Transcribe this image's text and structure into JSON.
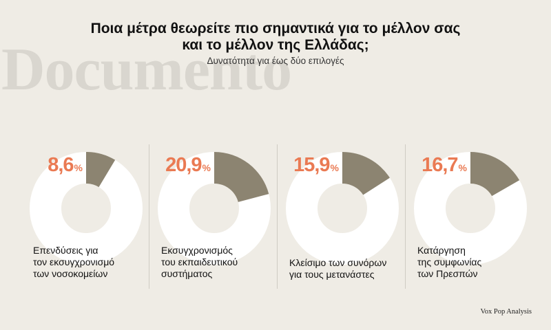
{
  "watermark": "Documento",
  "title_line1": "Ποια μέτρα θεωρείτε πιο σημαντικά για το μέλλον σας",
  "title_line2": "και το μέλλον της Ελλάδας;",
  "subtitle": "Δυνατότητα για έως δύο επιλογές",
  "source": "Vox Pop Analysis",
  "colors": {
    "slice": "#8c8471",
    "ring": "#ffffff",
    "percent": "#ea7a53",
    "background": "#efece5"
  },
  "chart_data": {
    "type": "pie",
    "title": "Ποια μέτρα θεωρείτε πιο σημαντικά για το μέλλον σας και το μέλλον της Ελλάδας;",
    "subtitle": "Δυνατότητα για έως δύο επιλογές",
    "unit": "%",
    "items": [
      {
        "label": "Επενδύσεις για\nτον εκσυγχρονισμό\nτων νοσοκομείων",
        "value": 8.6,
        "value_text": "8,6"
      },
      {
        "label": "Εκσυγχρονισμός\nτου εκπαιδευτικού\nσυστήματος",
        "value": 20.9,
        "value_text": "20,9"
      },
      {
        "label": "Κλείσιμο των συνόρων\nγια τους μετανάστες",
        "value": 15.9,
        "value_text": "15,9"
      },
      {
        "label": "Κατάργηση\nτης συμφωνίας\nτων Πρεσπών",
        "value": 16.7,
        "value_text": "16,7"
      }
    ]
  }
}
